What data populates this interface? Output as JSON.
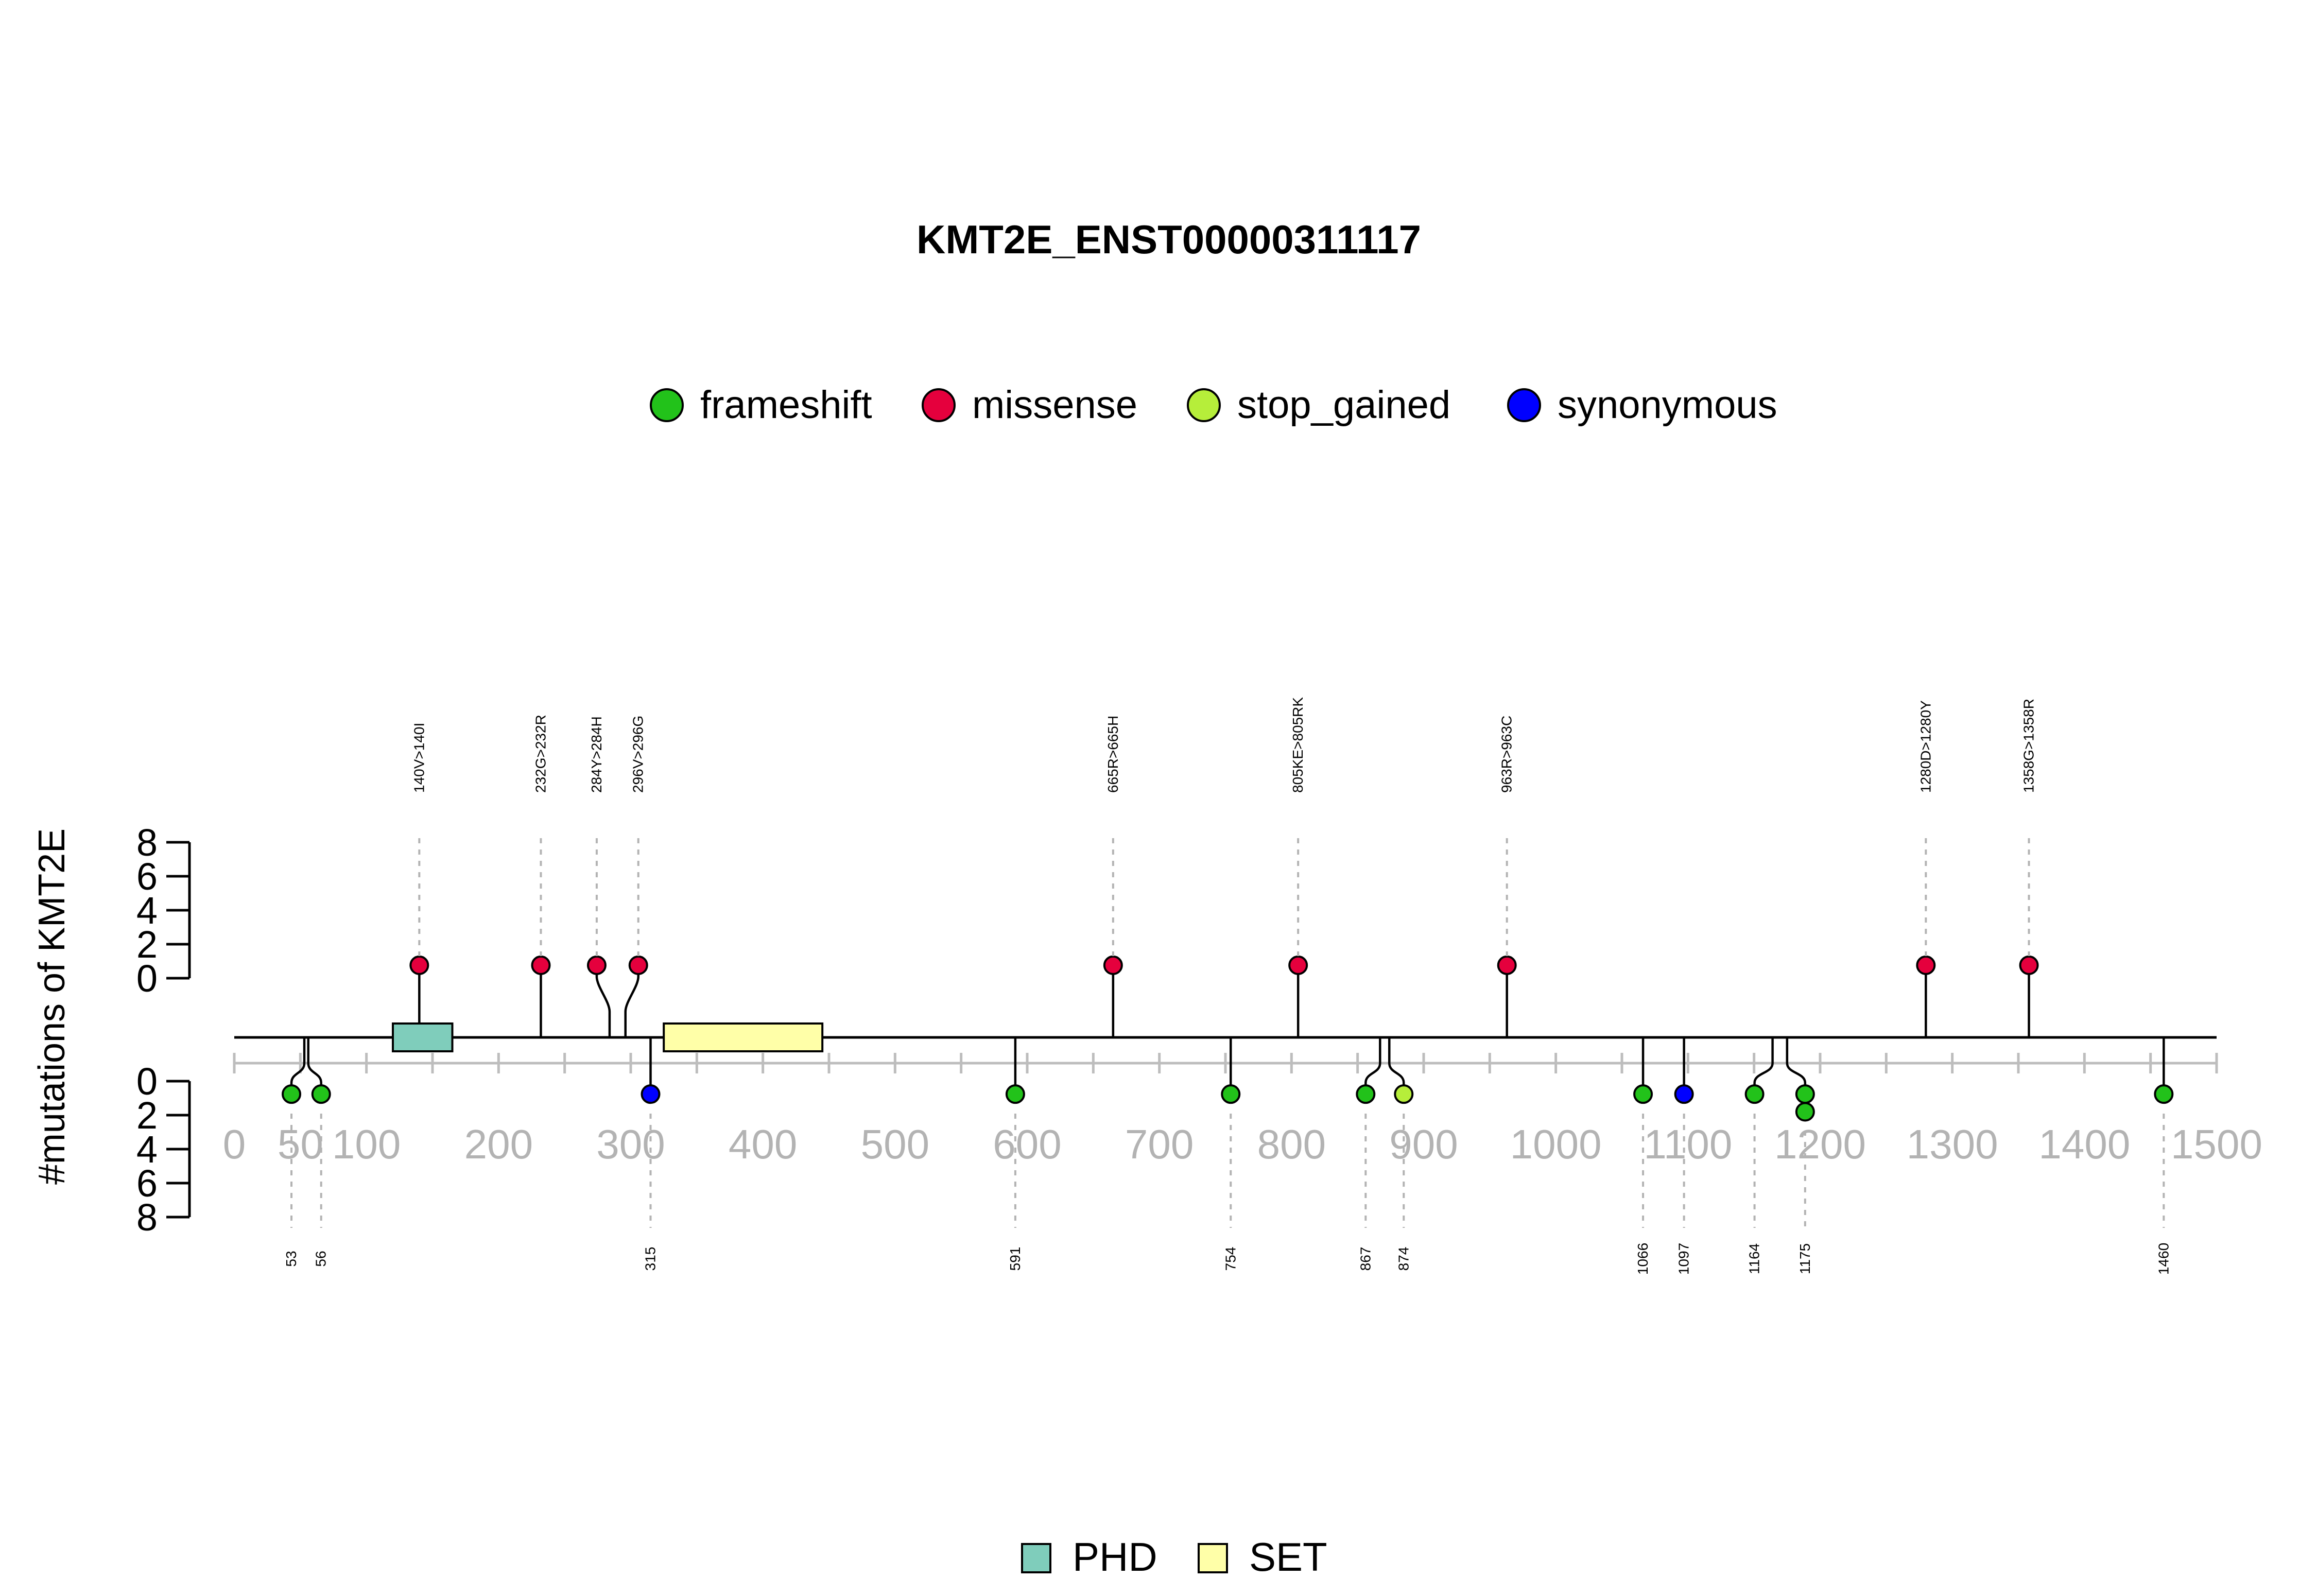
{
  "chart_data": {
    "type": "lollipop",
    "title": "KMT2E_ENST00000311117",
    "ylabel": "#mutations of KMT2E",
    "protein_length": 1500,
    "xlim": [
      0,
      1500
    ],
    "x_ticks": [
      0,
      50,
      100,
      200,
      300,
      400,
      500,
      600,
      700,
      800,
      900,
      1000,
      1100,
      1200,
      1300,
      1400,
      1500
    ],
    "x_tick_labels": [
      "0",
      "50",
      "100",
      "200",
      "300",
      "400",
      "500",
      "600",
      "700",
      "800",
      "900",
      "1000",
      "1100",
      "1200",
      "1300",
      "1400",
      "1500"
    ],
    "y_ticks": [
      0,
      2,
      4,
      6,
      8
    ],
    "y_tick_labels": [
      "0",
      "2",
      "4",
      "6",
      "8"
    ],
    "legend": [
      {
        "name": "frameshift",
        "color": "#22C21A"
      },
      {
        "name": "missense",
        "color": "#E5003D"
      },
      {
        "name": "stop_gained",
        "color": "#B6EE3A"
      },
      {
        "name": "synonymous",
        "color": "#0000FF"
      }
    ],
    "domains": [
      {
        "name": "PHD",
        "start": 120,
        "end": 165,
        "color": "#7FCDBB"
      },
      {
        "name": "SET",
        "start": 325,
        "end": 445,
        "color": "#FFFFA8"
      }
    ],
    "domain_legend": [
      {
        "name": "PHD",
        "color": "#7FCDBB"
      },
      {
        "name": "SET",
        "color": "#FFFFA8"
      }
    ],
    "mutations_top": [
      {
        "position": 140,
        "label": "140V>140I",
        "type": "missense",
        "count": 1
      },
      {
        "position": 232,
        "label": "232G>232R",
        "type": "missense",
        "count": 1
      },
      {
        "position": 284,
        "label": "284Y>284H",
        "type": "missense",
        "count": 1
      },
      {
        "position": 296,
        "label": "296V>296G",
        "type": "missense",
        "count": 1
      },
      {
        "position": 665,
        "label": "665R>665H",
        "type": "missense",
        "count": 1
      },
      {
        "position": 805,
        "label": "805KE>805RK",
        "type": "missense",
        "count": 1
      },
      {
        "position": 963,
        "label": "963R>963C",
        "type": "missense",
        "count": 1
      },
      {
        "position": 1280,
        "label": "1280D>1280Y",
        "type": "missense",
        "count": 1
      },
      {
        "position": 1358,
        "label": "1358G>1358R",
        "type": "missense",
        "count": 1
      }
    ],
    "mutations_bottom": [
      {
        "position": 53,
        "label": "53",
        "type": "frameshift",
        "count": 1
      },
      {
        "position": 56,
        "label": "56",
        "type": "frameshift",
        "count": 1
      },
      {
        "position": 315,
        "label": "315",
        "type": "synonymous",
        "count": 1
      },
      {
        "position": 591,
        "label": "591",
        "type": "frameshift",
        "count": 1
      },
      {
        "position": 754,
        "label": "754",
        "type": "frameshift",
        "count": 1
      },
      {
        "position": 867,
        "label": "867",
        "type": "frameshift",
        "count": 1
      },
      {
        "position": 874,
        "label": "874",
        "type": "stop_gained",
        "count": 1
      },
      {
        "position": 1066,
        "label": "1066",
        "type": "frameshift",
        "count": 1
      },
      {
        "position": 1097,
        "label": "1097",
        "type": "synonymous",
        "count": 1
      },
      {
        "position": 1164,
        "label": "1164",
        "type": "frameshift",
        "count": 1
      },
      {
        "position": 1175,
        "label": "1175",
        "type": "frameshift",
        "count": 2
      },
      {
        "position": 1460,
        "label": "1460",
        "type": "frameshift",
        "count": 1
      }
    ]
  }
}
